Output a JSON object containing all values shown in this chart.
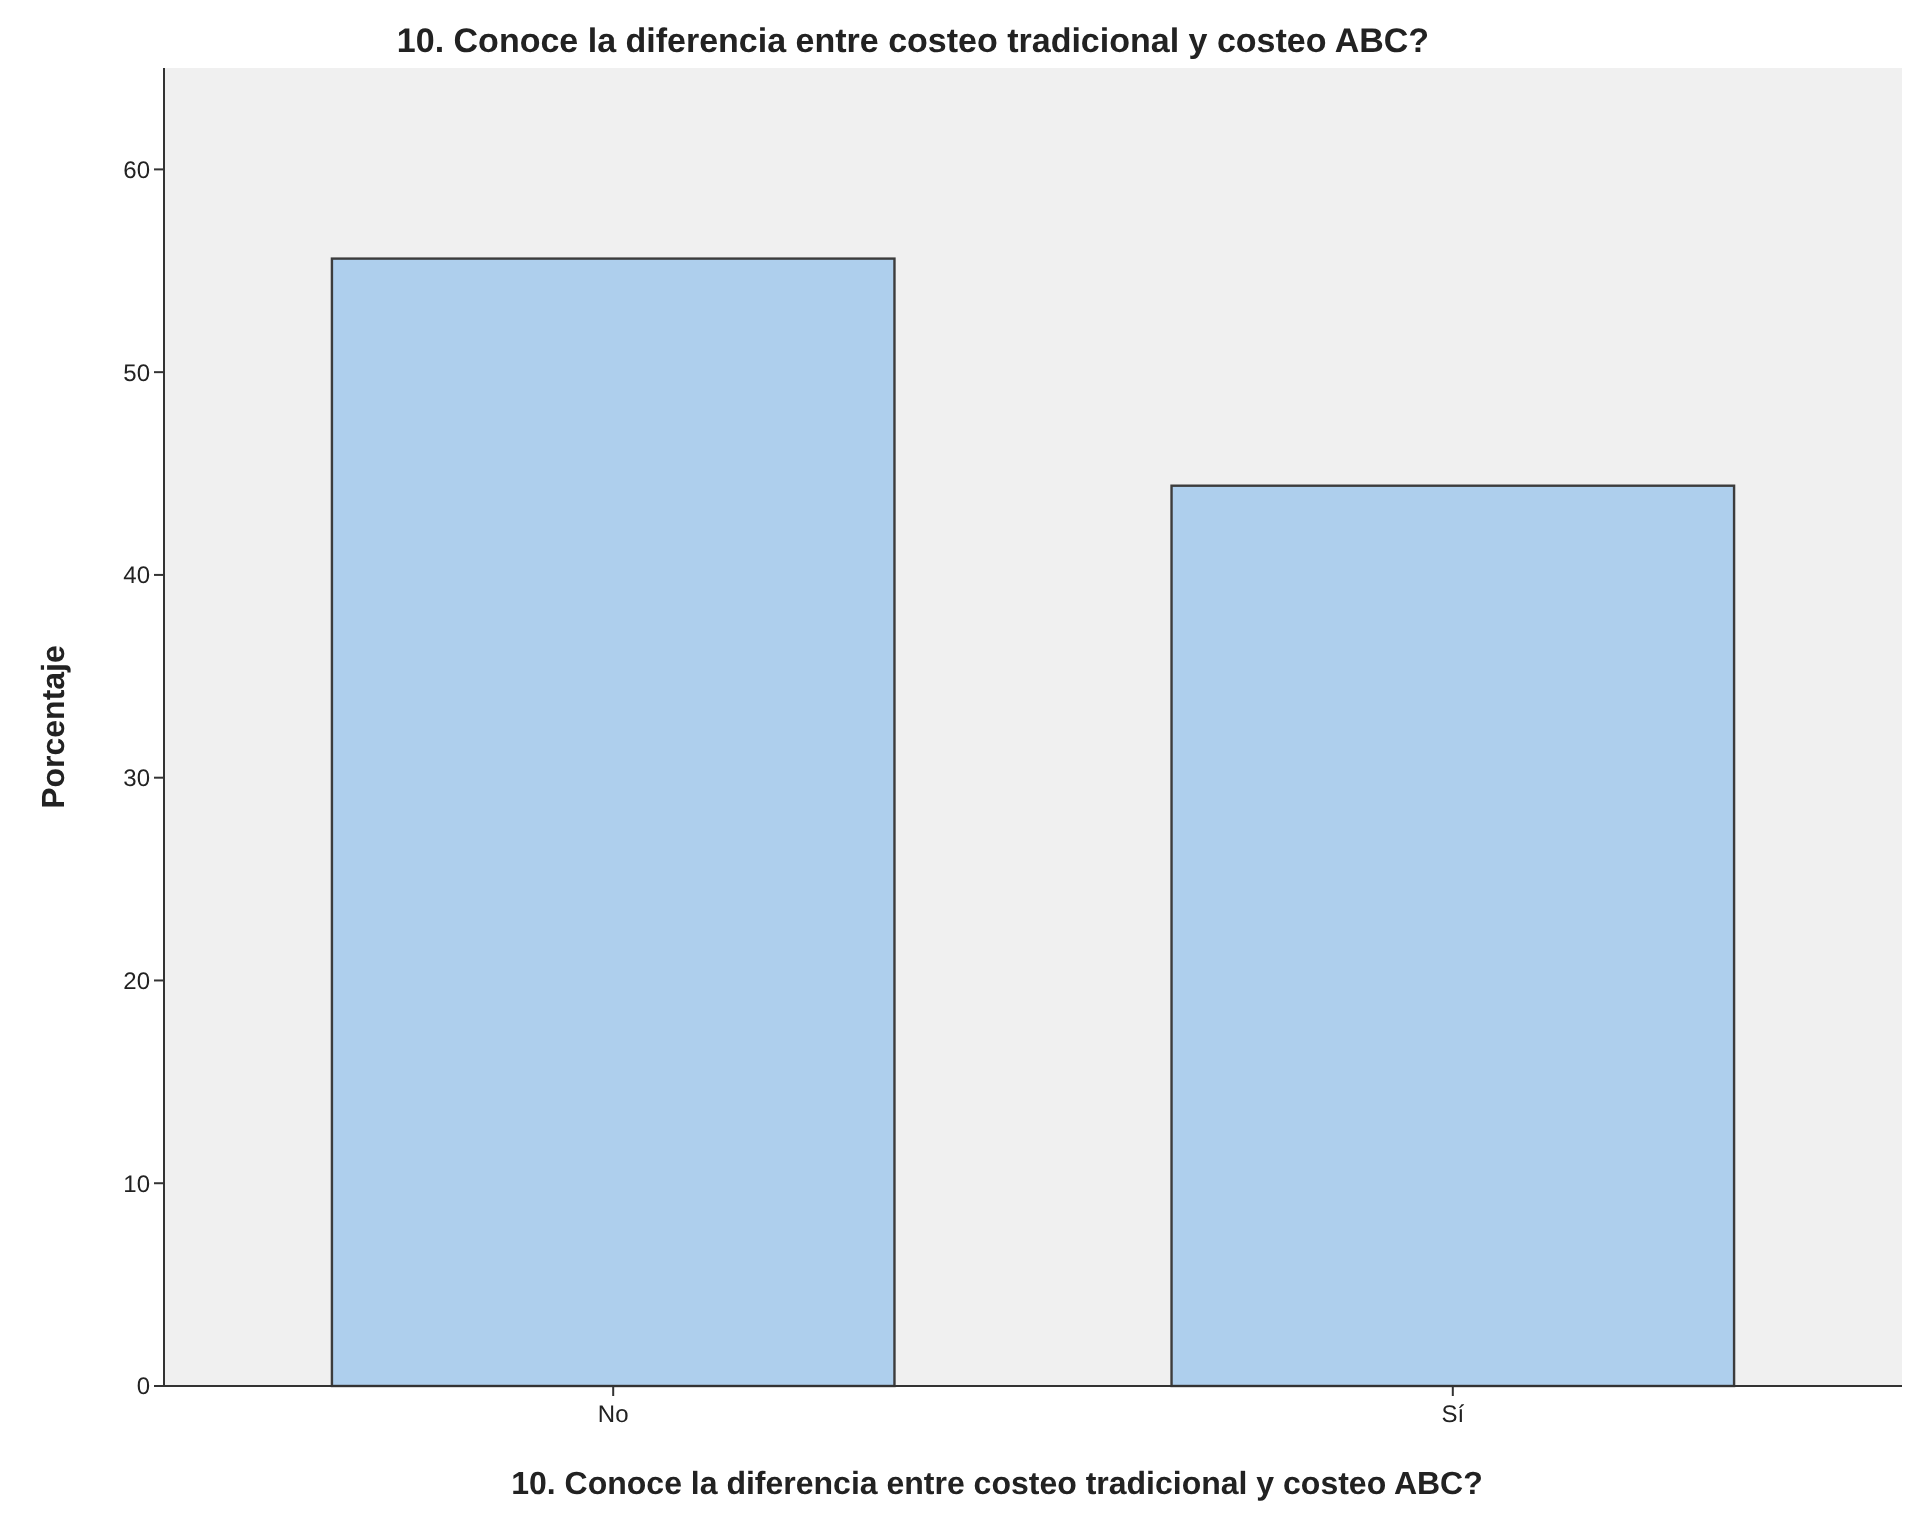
{
  "chart_data": {
    "type": "bar",
    "title": "10. Conoce la diferencia entre costeo tradicional y costeo ABC?",
    "xlabel": "10. Conoce la diferencia entre costeo tradicional y costeo ABC?",
    "ylabel": "Porcentaje",
    "categories": [
      "No",
      "Sí"
    ],
    "values": [
      55.6,
      44.4
    ],
    "color": "#aecfed",
    "ylim": [
      0,
      65
    ],
    "yticks": [
      0,
      10,
      20,
      30,
      40,
      50,
      60
    ],
    "grid": false
  }
}
